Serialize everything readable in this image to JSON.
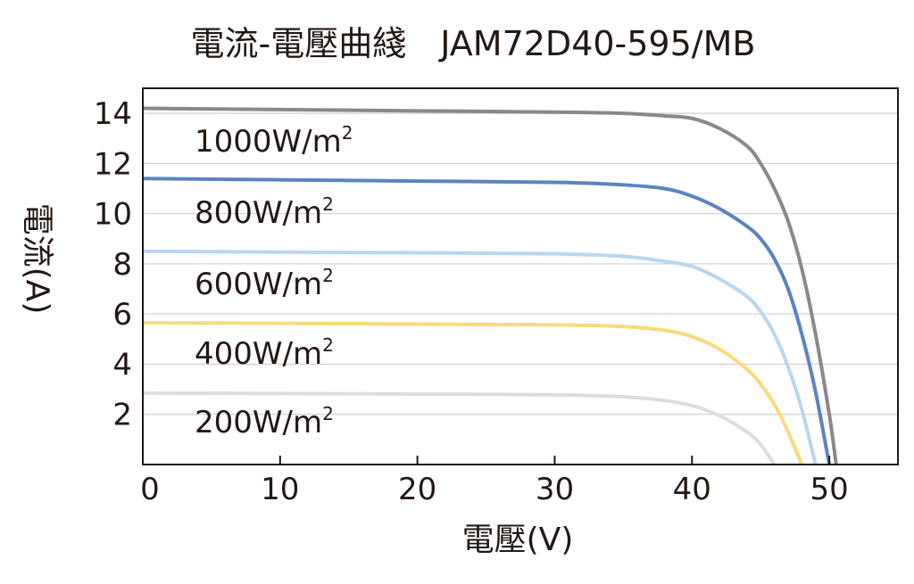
{
  "chart_data": {
    "type": "line",
    "title": "電流-電壓曲綫　JAM72D40-595/MB",
    "xlabel": "電壓(V)",
    "ylabel": "電流(A)",
    "xlim": [
      0,
      55
    ],
    "ylim": [
      0,
      15
    ],
    "x_ticks": [
      0,
      10,
      20,
      30,
      40,
      50
    ],
    "y_ticks": [
      2,
      4,
      6,
      8,
      10,
      12,
      14
    ],
    "grid": "horizontal",
    "legend": "inline labels on left",
    "series": [
      {
        "name": "1000W/m",
        "sup": "2",
        "color": "#8a8888",
        "x": [
          0,
          10,
          20,
          30,
          35,
          38,
          40,
          42,
          44,
          45,
          46,
          47,
          48,
          49,
          50,
          50.5
        ],
        "y": [
          14.2,
          14.15,
          14.1,
          14.05,
          14.0,
          13.9,
          13.8,
          13.4,
          12.7,
          12.0,
          11.0,
          9.7,
          7.8,
          5.2,
          2.0,
          0
        ]
      },
      {
        "name": "800W/m",
        "sup": "2",
        "color": "#5a84c0",
        "x": [
          0,
          10,
          20,
          30,
          35,
          38,
          40,
          42,
          44,
          45,
          46,
          47,
          48,
          49,
          50
        ],
        "y": [
          11.4,
          11.35,
          11.3,
          11.25,
          11.15,
          11.0,
          10.7,
          10.2,
          9.5,
          9.0,
          8.2,
          7.0,
          5.2,
          2.9,
          0
        ]
      },
      {
        "name": "600W/m",
        "sup": "2",
        "color": "#bad6f0",
        "x": [
          0,
          10,
          20,
          30,
          35,
          38,
          40,
          42,
          44,
          45,
          46,
          47,
          48,
          49
        ],
        "y": [
          8.5,
          8.47,
          8.44,
          8.4,
          8.3,
          8.1,
          7.9,
          7.4,
          6.7,
          6.1,
          5.2,
          3.9,
          2.2,
          0
        ]
      },
      {
        "name": "400W/m",
        "sup": "2",
        "color": "#f9da7c",
        "x": [
          0,
          10,
          20,
          30,
          35,
          38,
          40,
          42,
          44,
          45,
          46,
          47,
          48
        ],
        "y": [
          5.65,
          5.63,
          5.6,
          5.57,
          5.5,
          5.35,
          5.1,
          4.6,
          3.8,
          3.2,
          2.4,
          1.3,
          0
        ]
      },
      {
        "name": "200W/m",
        "sup": "2",
        "color": "#dddddd",
        "x": [
          0,
          10,
          20,
          30,
          35,
          38,
          40,
          42,
          44,
          45,
          46
        ],
        "y": [
          2.85,
          2.83,
          2.81,
          2.78,
          2.7,
          2.55,
          2.35,
          1.95,
          1.3,
          0.8,
          0
        ]
      }
    ]
  }
}
